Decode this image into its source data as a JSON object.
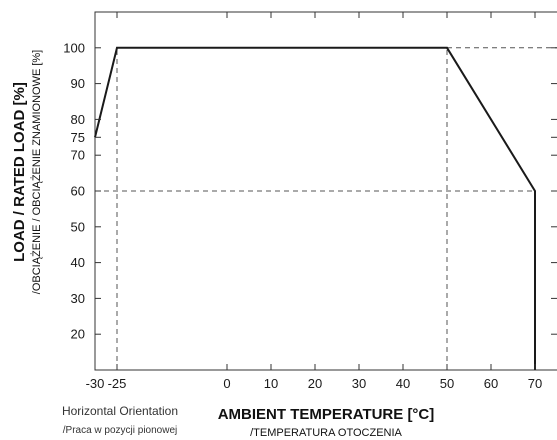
{
  "chart_data": {
    "type": "line",
    "title": "",
    "xlabel": "AMBIENT TEMPERATURE [°C]",
    "xlabel_sub": "/TEMPERATURA OTOCZENIA",
    "ylabel": "LOAD / RATED LOAD [%]",
    "ylabel_sub": "/OBCIĄŻENIE / OBCIĄŻENIE ZNAMIONOWE [%]",
    "xlim": [
      -30,
      75
    ],
    "ylim": [
      10,
      110
    ],
    "x_ticks": [
      -30,
      -25,
      0,
      10,
      20,
      30,
      40,
      50,
      60,
      70
    ],
    "x_tick_labels": [
      "-30",
      "-25",
      "0",
      "10",
      "20",
      "30",
      "40",
      "50",
      "60",
      "70"
    ],
    "y_ticks": [
      20,
      30,
      40,
      50,
      60,
      70,
      75,
      80,
      90,
      100
    ],
    "y_tick_labels": [
      "20",
      "30",
      "40",
      "50",
      "60",
      "70",
      "75",
      "80",
      "90",
      "100"
    ],
    "grid": false,
    "series": [
      {
        "x": [
          -30,
          -25,
          50,
          70,
          70
        ],
        "y": [
          75,
          100,
          100,
          60,
          10
        ]
      }
    ],
    "reference_lines": [
      {
        "orientation": "vertical",
        "x": -25,
        "y_from": 10,
        "y_to": 100
      },
      {
        "orientation": "vertical",
        "x": 50,
        "y_from": 10,
        "y_to": 100
      },
      {
        "orientation": "horizontal",
        "y": 100,
        "x_from": 50,
        "x_to": 75
      },
      {
        "orientation": "horizontal",
        "y": 60,
        "x_from": -30,
        "x_to": 70
      }
    ],
    "annotation": {
      "main": "Horizontal Orientation",
      "sub": "/Praca w pozycji pionowej"
    }
  }
}
